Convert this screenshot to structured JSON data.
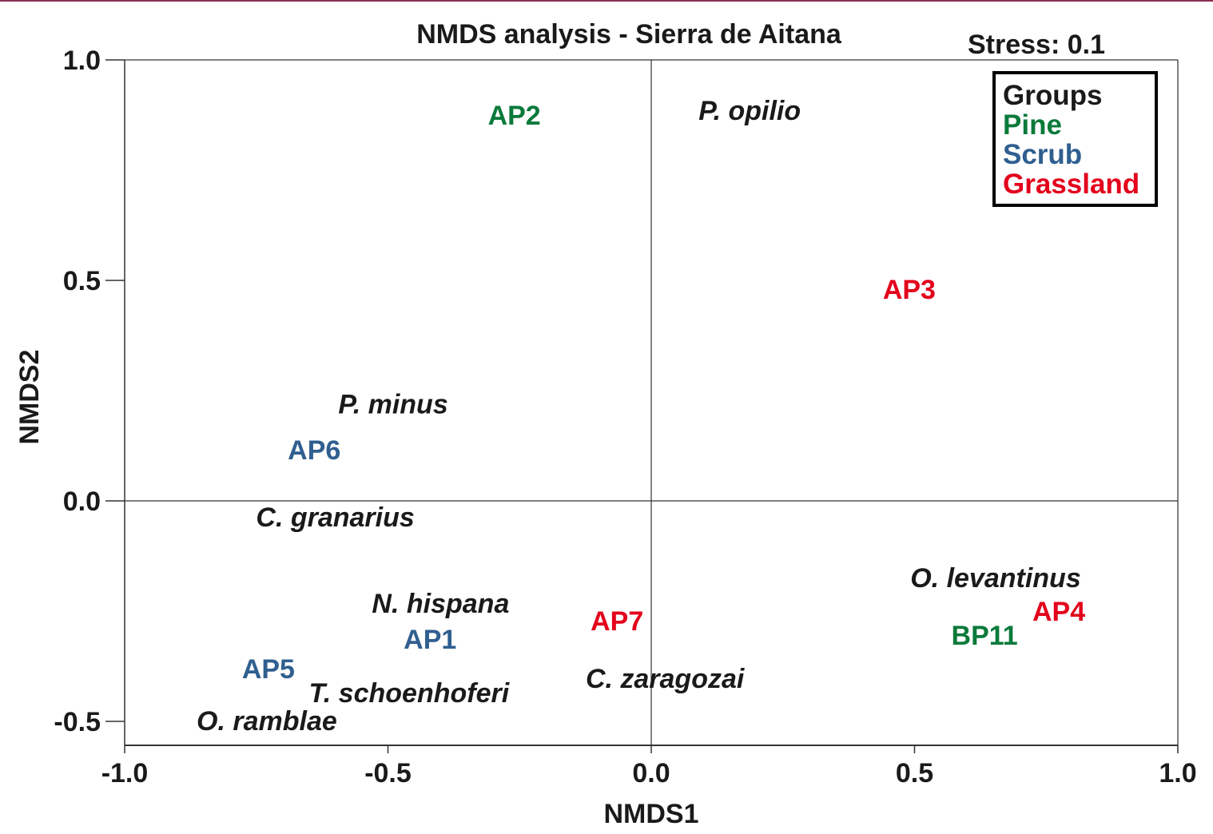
{
  "chart_data": {
    "type": "scatter",
    "title": "NMDS analysis - Sierra de Aitana",
    "annotation": "Stress: 0.1",
    "xlabel": "NMDS1",
    "ylabel": "NMDS2",
    "xlim": [
      -1.0,
      1.0
    ],
    "ylim": [
      -0.555,
      1.0
    ],
    "xticks": [
      -1.0,
      -0.5,
      0.0,
      0.5,
      1.0
    ],
    "xtick_labels": [
      "-1.0",
      "-0.5",
      "0.0",
      "0.5",
      "1.0"
    ],
    "yticks": [
      1.0,
      0.5,
      0.0,
      -0.5
    ],
    "ytick_labels": [
      "1.0",
      "0.5",
      "0.0",
      "-0.5"
    ],
    "reference_lines": {
      "x": 0.0,
      "y": 0.0
    },
    "grid": false,
    "legend": {
      "title": "Groups",
      "placement": "top-right",
      "entries": [
        {
          "name": "Pine",
          "color": "#0a7a3a"
        },
        {
          "name": "Scrub",
          "color": "#2f5f8f"
        },
        {
          "name": "Grassland",
          "color": "#e3001b"
        }
      ]
    },
    "sites": [
      {
        "label": "AP2",
        "group": "Pine",
        "x": -0.26,
        "y": 0.875
      },
      {
        "label": "BP11",
        "group": "Pine",
        "x": 0.633,
        "y": -0.304
      },
      {
        "label": "AP6",
        "group": "Scrub",
        "x": -0.64,
        "y": 0.116
      },
      {
        "label": "AP1",
        "group": "Scrub",
        "x": -0.42,
        "y": -0.313
      },
      {
        "label": "AP5",
        "group": "Scrub",
        "x": -0.727,
        "y": -0.38
      },
      {
        "label": "AP3",
        "group": "Grassland",
        "x": 0.49,
        "y": 0.48
      },
      {
        "label": "AP7",
        "group": "Grassland",
        "x": -0.065,
        "y": -0.272
      },
      {
        "label": "AP4",
        "group": "Grassland",
        "x": 0.774,
        "y": -0.25
      }
    ],
    "species": [
      {
        "label": "P. opilio",
        "x": 0.187,
        "y": 0.886
      },
      {
        "label": "P. minus",
        "x": -0.49,
        "y": 0.22
      },
      {
        "label": "C. granarius",
        "x": -0.6,
        "y": -0.036
      },
      {
        "label": "O. levantinus",
        "x": 0.654,
        "y": -0.174
      },
      {
        "label": "N. hispana",
        "x": -0.4,
        "y": -0.232
      },
      {
        "label": "T. schoenhoferi",
        "x": -0.46,
        "y": -0.435
      },
      {
        "label": "C. zaragozai",
        "x": 0.026,
        "y": -0.402
      },
      {
        "label": "O. ramblae",
        "x": -0.73,
        "y": -0.498
      }
    ]
  }
}
